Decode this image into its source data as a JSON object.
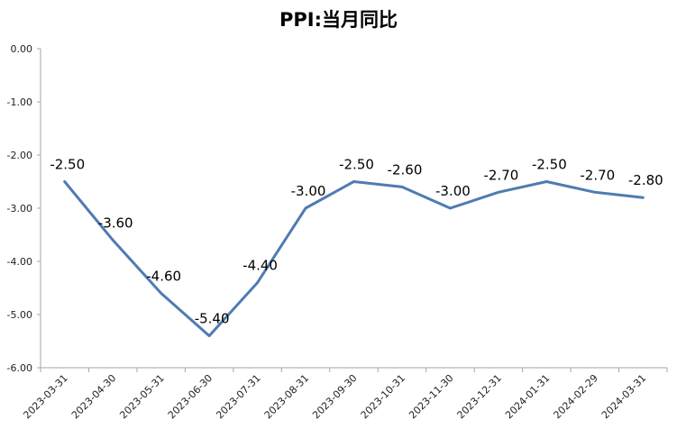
{
  "chart_data": {
    "type": "line",
    "title": "PPI:当月同比",
    "xlabel": "",
    "ylabel": "",
    "categories": [
      "2023-03-31",
      "2023-04-30",
      "2023-05-31",
      "2023-06-30",
      "2023-07-31",
      "2023-08-31",
      "2023-09-30",
      "2023-10-31",
      "2023-11-30",
      "2023-12-31",
      "2024-01-31",
      "2024-02-29",
      "2024-03-31"
    ],
    "series": [
      {
        "values": [
          -2.5,
          -3.6,
          -4.6,
          -5.4,
          -4.4,
          -3.0,
          -2.5,
          -2.6,
          -3.0,
          -2.7,
          -2.5,
          -2.7,
          -2.8
        ],
        "data_labels": [
          "-2.50",
          "-3.60",
          "-4.60",
          "-5.40",
          "-4.40",
          "-3.00",
          "-2.50",
          "-2.60",
          "-3.00",
          "-2.70",
          "-2.50",
          "-2.70",
          "-2.80"
        ],
        "color": "#4f7bb1"
      }
    ],
    "ylim": [
      -6,
      0
    ],
    "yticks": [
      "0.00",
      "-1.00",
      "-2.00",
      "-3.00",
      "-4.00",
      "-5.00",
      "-6.00"
    ],
    "ytick_values": [
      0,
      -1,
      -2,
      -3,
      -4,
      -5,
      -6
    ],
    "grid": false,
    "legend": "none",
    "axis_color": "#a6a6a6"
  }
}
